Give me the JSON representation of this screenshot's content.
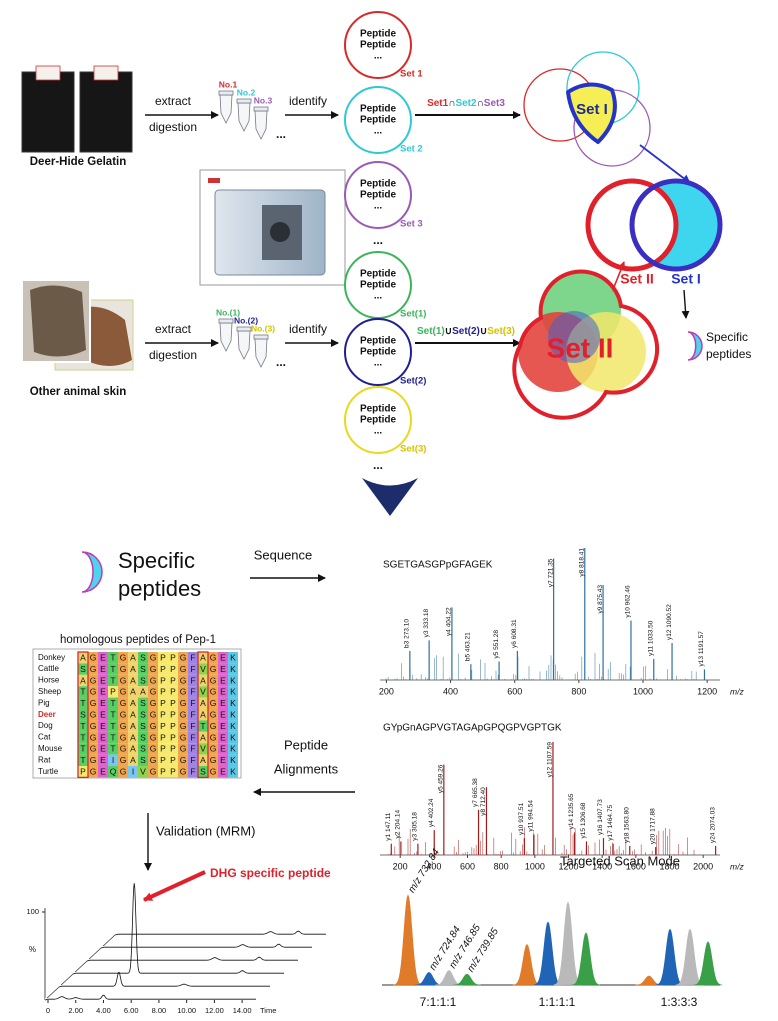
{
  "top": {
    "deer": {
      "label": "Deer-Hide Gelatin",
      "extract": "extract",
      "digestion": "digestion",
      "identify": "identify",
      "tubes": [
        "No.1",
        "No.2",
        "No.3"
      ],
      "tubes_more": "...",
      "sets": [
        {
          "peptides": [
            "Peptide",
            "Peptide",
            "..."
          ],
          "name": "Set 1"
        },
        {
          "peptides": [
            "Peptide",
            "Peptide",
            "..."
          ],
          "name": "Set 2"
        },
        {
          "peptides": [
            "Peptide",
            "Peptide",
            "..."
          ],
          "name": "Set 3"
        }
      ],
      "sets_more": "...",
      "operation": [
        "Set1",
        "∩",
        "Set2",
        "∩",
        "Set3"
      ],
      "result": "Set I"
    },
    "other": {
      "label": "Other animal skin",
      "extract": "extract",
      "digestion": "digestion",
      "identify": "identify",
      "tubes": [
        "No.(1)",
        "No.(2)",
        "No.(3)"
      ],
      "tubes_more": "...",
      "sets": [
        {
          "peptides": [
            "Peptide",
            "Peptide",
            "..."
          ],
          "name": "Set(1)"
        },
        {
          "peptides": [
            "Peptide",
            "Peptide",
            "..."
          ],
          "name": "Set(2)"
        },
        {
          "peptides": [
            "Peptide",
            "Peptide",
            "..."
          ],
          "name": "Set(3)"
        }
      ],
      "sets_more": "...",
      "operation": [
        "Set(1)",
        "∪",
        "Set(2)",
        "∪",
        "Set(3)"
      ],
      "result": "Set II"
    },
    "comparison": {
      "set2": "Set II",
      "set1": "Set I",
      "output": [
        "Specific",
        "peptides"
      ]
    }
  },
  "bottom": {
    "specific": [
      "Specific",
      "peptides"
    ],
    "sequence_step": "Sequence",
    "alignment": {
      "title": "homologous peptides of Pep-1",
      "rows": [
        {
          "name": "Donkey",
          "residues": [
            "A",
            "G",
            "E",
            "T",
            "G",
            "A",
            "S",
            "G",
            "P",
            "P",
            "G",
            "F",
            "A",
            "G",
            "E",
            "K"
          ]
        },
        {
          "name": "Cattle",
          "residues": [
            "S",
            "G",
            "E",
            "T",
            "G",
            "A",
            "S",
            "G",
            "P",
            "P",
            "G",
            "F",
            "V",
            "G",
            "E",
            "K"
          ]
        },
        {
          "name": "Horse",
          "residues": [
            "A",
            "G",
            "E",
            "T",
            "G",
            "A",
            "S",
            "G",
            "P",
            "P",
            "G",
            "F",
            "A",
            "G",
            "E",
            "K"
          ]
        },
        {
          "name": "Sheep",
          "residues": [
            "T",
            "G",
            "E",
            "P",
            "G",
            "A",
            "A",
            "G",
            "P",
            "P",
            "G",
            "F",
            "V",
            "G",
            "E",
            "K"
          ]
        },
        {
          "name": "Pig",
          "residues": [
            "T",
            "G",
            "E",
            "T",
            "G",
            "A",
            "S",
            "G",
            "P",
            "P",
            "G",
            "F",
            "A",
            "G",
            "E",
            "K"
          ]
        },
        {
          "name": "Deer",
          "residues": [
            "S",
            "G",
            "E",
            "T",
            "G",
            "A",
            "S",
            "G",
            "P",
            "P",
            "G",
            "F",
            "A",
            "G",
            "E",
            "K"
          ]
        },
        {
          "name": "Dog",
          "residues": [
            "T",
            "G",
            "E",
            "T",
            "G",
            "A",
            "S",
            "G",
            "P",
            "P",
            "G",
            "F",
            "T",
            "G",
            "E",
            "K"
          ]
        },
        {
          "name": "Cat",
          "residues": [
            "T",
            "G",
            "E",
            "T",
            "G",
            "A",
            "S",
            "G",
            "P",
            "P",
            "G",
            "F",
            "A",
            "G",
            "E",
            "K"
          ]
        },
        {
          "name": "Mouse",
          "residues": [
            "T",
            "G",
            "E",
            "T",
            "G",
            "A",
            "S",
            "G",
            "P",
            "P",
            "G",
            "F",
            "V",
            "G",
            "E",
            "K"
          ]
        },
        {
          "name": "Rat",
          "residues": [
            "T",
            "G",
            "E",
            "I",
            "G",
            "A",
            "S",
            "G",
            "P",
            "P",
            "G",
            "F",
            "A",
            "G",
            "E",
            "K"
          ]
        },
        {
          "name": "Turtle",
          "residues": [
            "P",
            "G",
            "E",
            "Q",
            "G",
            "I",
            "V",
            "G",
            "P",
            "P",
            "G",
            "F",
            "S",
            "G",
            "E",
            "K"
          ]
        }
      ]
    },
    "alignment_step": [
      "Peptide",
      "Alignments"
    ],
    "validation_step": "Validation (MRM)",
    "callout": "DHG specific peptide",
    "spectra": [
      {
        "title": "SGETGASGPpGFAGEK",
        "xlim": [
          180,
          1240
        ],
        "ylim": [
          0,
          100
        ],
        "xticks": [
          200,
          400,
          600,
          800,
          1000,
          1200
        ],
        "xlabel": "m/z",
        "peaks": [
          {
            "label": "b3 273.10",
            "mz": 273.1,
            "intensity": 22
          },
          {
            "label": "y3 333.18",
            "mz": 333.18,
            "intensity": 30
          },
          {
            "label": "y4 404.22",
            "mz": 404.22,
            "intensity": 55
          },
          {
            "label": "b5 463.21",
            "mz": 463.21,
            "intensity": 12
          },
          {
            "label": "y5 551.28",
            "mz": 551.28,
            "intensity": 14
          },
          {
            "label": "y6 608.31",
            "mz": 608.31,
            "intensity": 22
          },
          {
            "label": "y7 721.35",
            "mz": 721.35,
            "intensity": 92
          },
          {
            "label": "y8 818.41",
            "mz": 818.41,
            "intensity": 100
          },
          {
            "label": "y9 875.43",
            "mz": 875.43,
            "intensity": 72
          },
          {
            "label": "y10 962.46",
            "mz": 962.46,
            "intensity": 45
          },
          {
            "label": "y11 1033.50",
            "mz": 1033.5,
            "intensity": 16
          },
          {
            "label": "y12 1090.52",
            "mz": 1090.52,
            "intensity": 28
          },
          {
            "label": "y13 1191.57",
            "mz": 1191.57,
            "intensity": 8
          }
        ]
      },
      {
        "title": "GYpGnAGPVGTAGApGPQGPVGPTGK",
        "xlim": [
          80,
          2100
        ],
        "ylim": [
          0,
          100
        ],
        "xticks": [
          200,
          400,
          600,
          800,
          1000,
          1200,
          1400,
          1600,
          1800,
          2000
        ],
        "xlabel": "m/z",
        "peaks": [
          {
            "label": "y1 147.11",
            "mz": 147.11,
            "intensity": 10
          },
          {
            "label": "y2 204.14",
            "mz": 204.14,
            "intensity": 12
          },
          {
            "label": "y3 305.18",
            "mz": 305.18,
            "intensity": 10
          },
          {
            "label": "y4 402.24",
            "mz": 402.24,
            "intensity": 22
          },
          {
            "label": "y5 459.26",
            "mz": 459.26,
            "intensity": 80
          },
          {
            "label": "y7 665.38",
            "mz": 665.38,
            "intensity": 40
          },
          {
            "label": "y8 712.40",
            "mz": 712.4,
            "intensity": 60
          },
          {
            "label": "y10 937.51",
            "mz": 937.51,
            "intensity": 15
          },
          {
            "label": "y11 994.54",
            "mz": 994.54,
            "intensity": 18
          },
          {
            "label": "y12 1107.59",
            "mz": 1107.59,
            "intensity": 100
          },
          {
            "label": "y14 1235.65",
            "mz": 1235.65,
            "intensity": 20
          },
          {
            "label": "y15 1306.68",
            "mz": 1306.68,
            "intensity": 12
          },
          {
            "label": "y16 1407.73",
            "mz": 1407.73,
            "intensity": 15
          },
          {
            "label": "y17 1464.75",
            "mz": 1464.75,
            "intensity": 10
          },
          {
            "label": "y18 1563.80",
            "mz": 1563.8,
            "intensity": 8
          },
          {
            "label": "y20 1717.88",
            "mz": 1717.88,
            "intensity": 7
          },
          {
            "label": "y24 2074.03",
            "mz": 2074.03,
            "intensity": 8
          }
        ]
      }
    ],
    "chromatogram": {
      "xlim": [
        0,
        15
      ],
      "ylim": [
        0,
        100
      ],
      "xticks": [
        {
          "value": 0,
          "label": "0"
        },
        {
          "value": 2,
          "label": "2.00"
        },
        {
          "value": 4,
          "label": "4.00"
        },
        {
          "value": 6,
          "label": "6.00"
        },
        {
          "value": 8,
          "label": "8.00"
        },
        {
          "value": 10,
          "label": "10.00"
        },
        {
          "value": 12,
          "label": "12.00"
        },
        {
          "value": 14,
          "label": "14.00"
        }
      ],
      "xlabel": "Time",
      "yticks": [
        100
      ],
      "ylabel": "%"
    },
    "targeted": {
      "title": "Targeted Scan Mode",
      "ion_labels": [
        "m/z 732.84",
        "m/z 724.84",
        "m/z 746.85",
        "m/z 739.85"
      ],
      "colors": [
        "#e07b2a",
        "#1f64b5",
        "#b9b9b9",
        "#3aa048"
      ],
      "groups": [
        {
          "label": "7:1:1:1",
          "heights": [
            100,
            14,
            16,
            12
          ]
        },
        {
          "label": "1:1:1:1",
          "heights": [
            45,
            70,
            92,
            58
          ]
        },
        {
          "label": "1:3:3:3",
          "heights": [
            10,
            62,
            62,
            48
          ]
        }
      ]
    }
  }
}
